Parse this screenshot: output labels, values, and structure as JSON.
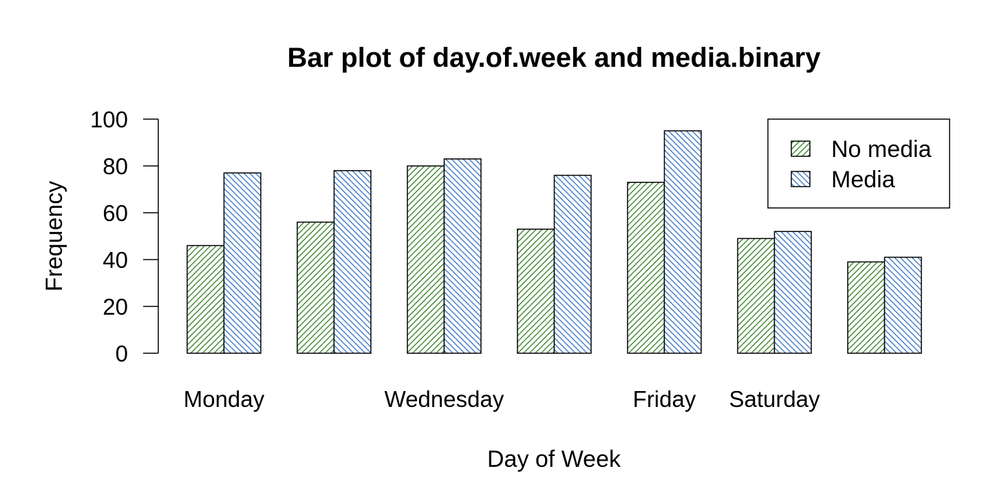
{
  "chart_data": {
    "type": "bar",
    "title": "Bar plot of day.of.week and media.binary",
    "xlabel": "Day of Week",
    "ylabel": "Frequency",
    "ylim": [
      0,
      100
    ],
    "yticks": [
      "0",
      "20",
      "40",
      "60",
      "80",
      "100"
    ],
    "categories": [
      "Monday",
      "",
      "Wednesday",
      "",
      "Friday",
      "Saturday",
      ""
    ],
    "series": [
      {
        "name": "No media",
        "values": [
          46,
          56,
          80,
          53,
          73,
          49,
          39
        ],
        "color": "#2e7d1f"
      },
      {
        "name": "Media",
        "values": [
          77,
          78,
          83,
          76,
          95,
          52,
          41
        ],
        "color": "#2f6fbf"
      }
    ],
    "legend_position": "top-right",
    "grid": false
  }
}
